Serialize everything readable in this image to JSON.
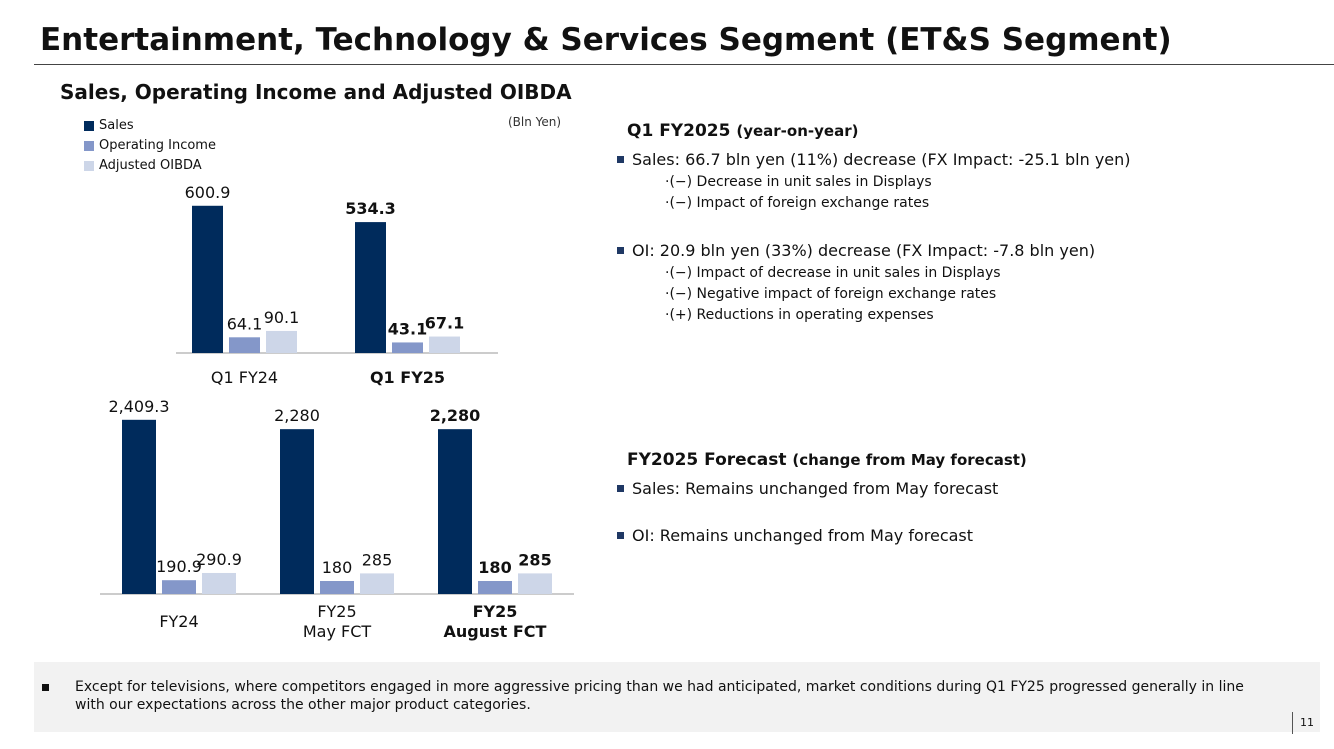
{
  "page": {
    "title": "Entertainment, Technology & Services Segment (ET&S Segment)",
    "chart_subtitle": "Sales, Operating Income and Adjusted OIBDA",
    "unit_note": "(Bln Yen)",
    "page_number": "11"
  },
  "legend": {
    "items": [
      {
        "label": "Sales",
        "color": "#002B5C"
      },
      {
        "label": "Operating Income",
        "color": "#8497C9"
      },
      {
        "label": "Adjusted OIBDA",
        "color": "#CDD6E8"
      }
    ]
  },
  "chart_data": [
    {
      "type": "bar",
      "title": "Quarterly",
      "categories": [
        "Q1 FY24",
        "Q1 FY25"
      ],
      "category_bold": [
        false,
        true
      ],
      "series": [
        {
          "name": "Sales",
          "values": [
            600.9,
            534.3
          ],
          "labels": [
            "600.9",
            "534.3"
          ],
          "color": "#002B5C"
        },
        {
          "name": "Operating Income",
          "values": [
            64.1,
            43.1
          ],
          "labels": [
            "64.1",
            "43.1"
          ],
          "color": "#8497C9"
        },
        {
          "name": "Adjusted OIBDA",
          "values": [
            90.1,
            67.1
          ],
          "labels": [
            "90.1",
            "67.1"
          ],
          "color": "#CDD6E8"
        }
      ]
    },
    {
      "type": "bar",
      "title": "Full year",
      "categories": [
        "FY24",
        "FY25\nMay FCT",
        "FY25\nAugust FCT"
      ],
      "category_bold": [
        false,
        false,
        true
      ],
      "series": [
        {
          "name": "Sales",
          "values": [
            2409.3,
            2280,
            2280
          ],
          "labels": [
            "2,409.3",
            "2,280",
            "2,280"
          ],
          "color": "#002B5C"
        },
        {
          "name": "Operating Income",
          "values": [
            190.9,
            180,
            180
          ],
          "labels": [
            "190.9",
            "180",
            "180"
          ],
          "color": "#8497C9"
        },
        {
          "name": "Adjusted OIBDA",
          "values": [
            290.9,
            285,
            285
          ],
          "labels": [
            "290.9",
            "285",
            "285"
          ],
          "color": "#CDD6E8"
        }
      ]
    }
  ],
  "q1": {
    "heading": "Q1 FY2025",
    "heading_note": "(year-on-year)",
    "sales_bullet": "Sales: 66.7 bln yen (11%) decrease (FX Impact: -25.1 bln yen)",
    "sales_points": [
      "·(−) Decrease in unit sales in Displays",
      "·(−) Impact of foreign exchange rates"
    ],
    "oi_bullet": "OI: 20.9 bln yen (33%) decrease (FX Impact: -7.8 bln yen)",
    "oi_points": [
      "·(−) Impact of decrease in unit sales in Displays",
      "·(−) Negative impact of foreign exchange rates",
      "·(+) Reductions in operating expenses"
    ]
  },
  "forecast": {
    "heading": "FY2025 Forecast",
    "heading_note": "(change from May forecast)",
    "sales_bullet": "Sales: Remains unchanged from May forecast",
    "oi_bullet": "OI: Remains unchanged from May forecast"
  },
  "footer": {
    "text": "Except for televisions, where competitors engaged in more aggressive pricing than we had anticipated, market conditions during Q1 FY25 progressed generally in line with our expectations across the other major product categories."
  }
}
